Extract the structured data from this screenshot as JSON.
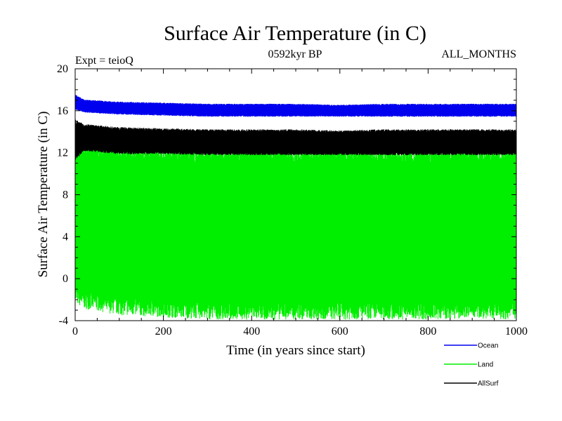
{
  "chart_data": {
    "type": "line",
    "title": "Surface Air Temperature (in C)",
    "subtitle_left": "Expt = teioQ",
    "subtitle_center": "0592kyr BP",
    "subtitle_right": "ALL_MONTHS",
    "xlabel": "Time (in years since start)",
    "ylabel": "Surface Air Temperature (in C)",
    "xlim": [
      0,
      1000
    ],
    "ylim": [
      -4,
      20
    ],
    "xticks": [
      0,
      200,
      400,
      600,
      800,
      1000
    ],
    "yticks": [
      -4,
      0,
      4,
      8,
      12,
      16,
      20
    ],
    "xtick_labels": [
      "0",
      "200",
      "400",
      "600",
      "800",
      "1000"
    ],
    "ytick_labels": [
      "-4",
      "0",
      "4",
      "8",
      "12",
      "16",
      "20"
    ],
    "grid": false,
    "legend_position": "bottom-right",
    "series": [
      {
        "name": "Land",
        "color": "#00ee00",
        "band": [
          {
            "x": 0,
            "min": -1.5,
            "max": 13.0
          },
          {
            "x": 20,
            "min": -2.0,
            "max": 12.5
          },
          {
            "x": 100,
            "min": -2.6,
            "max": 12.0
          },
          {
            "x": 200,
            "min": -2.8,
            "max": 11.9
          },
          {
            "x": 300,
            "min": -3.0,
            "max": 11.8
          },
          {
            "x": 400,
            "min": -3.0,
            "max": 11.9
          },
          {
            "x": 500,
            "min": -3.0,
            "max": 11.8
          },
          {
            "x": 600,
            "min": -3.0,
            "max": 11.9
          },
          {
            "x": 700,
            "min": -3.0,
            "max": 11.8
          },
          {
            "x": 800,
            "min": -3.0,
            "max": 11.9
          },
          {
            "x": 900,
            "min": -2.9,
            "max": 11.8
          },
          {
            "x": 1000,
            "min": -3.0,
            "max": 11.8
          }
        ]
      },
      {
        "name": "AllSurf",
        "color": "#000000",
        "band": [
          {
            "x": 0,
            "min": 11.5,
            "max": 15.0
          },
          {
            "x": 20,
            "min": 12.3,
            "max": 14.6
          },
          {
            "x": 100,
            "min": 12.0,
            "max": 14.3
          },
          {
            "x": 200,
            "min": 12.0,
            "max": 14.2
          },
          {
            "x": 300,
            "min": 11.9,
            "max": 14.1
          },
          {
            "x": 400,
            "min": 11.9,
            "max": 14.1
          },
          {
            "x": 500,
            "min": 11.9,
            "max": 14.1
          },
          {
            "x": 600,
            "min": 11.9,
            "max": 14.0
          },
          {
            "x": 700,
            "min": 11.9,
            "max": 14.1
          },
          {
            "x": 800,
            "min": 11.9,
            "max": 14.1
          },
          {
            "x": 900,
            "min": 11.9,
            "max": 14.1
          },
          {
            "x": 1000,
            "min": 11.9,
            "max": 14.1
          }
        ]
      },
      {
        "name": "Ocean",
        "color": "#0000ee",
        "band": [
          {
            "x": 0,
            "min": 16.2,
            "max": 17.5
          },
          {
            "x": 20,
            "min": 15.9,
            "max": 17.0
          },
          {
            "x": 100,
            "min": 15.7,
            "max": 16.8
          },
          {
            "x": 200,
            "min": 15.6,
            "max": 16.7
          },
          {
            "x": 300,
            "min": 15.5,
            "max": 16.6
          },
          {
            "x": 400,
            "min": 15.5,
            "max": 16.6
          },
          {
            "x": 500,
            "min": 15.5,
            "max": 16.6
          },
          {
            "x": 600,
            "min": 15.5,
            "max": 16.5
          },
          {
            "x": 700,
            "min": 15.5,
            "max": 16.6
          },
          {
            "x": 800,
            "min": 15.5,
            "max": 16.6
          },
          {
            "x": 900,
            "min": 15.5,
            "max": 16.6
          },
          {
            "x": 1000,
            "min": 15.5,
            "max": 16.6
          }
        ]
      }
    ],
    "legend": [
      {
        "label": "Ocean",
        "color": "#0000ee"
      },
      {
        "label": "Land",
        "color": "#00ee00"
      },
      {
        "label": "AllSurf",
        "color": "#000000"
      }
    ]
  }
}
